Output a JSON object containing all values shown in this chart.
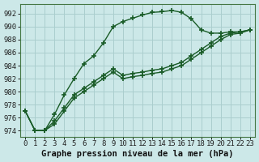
{
  "title": "Graphe pression niveau de la mer (hPa)",
  "bg_color": "#cce8e8",
  "grid_color": "#aacece",
  "line_color": "#1a5c28",
  "xlim": [
    -0.5,
    23.5
  ],
  "ylim": [
    973.0,
    993.5
  ],
  "xticks": [
    0,
    1,
    2,
    3,
    4,
    5,
    6,
    7,
    8,
    9,
    10,
    11,
    12,
    13,
    14,
    15,
    16,
    17,
    18,
    19,
    20,
    21,
    22,
    23
  ],
  "yticks": [
    974,
    976,
    978,
    980,
    982,
    984,
    986,
    988,
    990,
    992
  ],
  "line1": [
    977,
    974,
    974,
    976.5,
    979.5,
    982,
    984.3,
    985.5,
    987.5,
    990.0,
    990.8,
    991.3,
    991.8,
    992.2,
    992.3,
    992.5,
    992.2,
    991.2,
    989.5,
    989.0,
    989.0,
    989.2,
    989.2,
    989.5
  ],
  "line2": [
    977,
    974,
    974,
    975.5,
    977.5,
    979.5,
    980.5,
    981.5,
    982.5,
    983.5,
    982.5,
    982.8,
    983.0,
    983.3,
    983.5,
    984.0,
    984.5,
    985.5,
    986.5,
    987.5,
    988.5,
    989.0,
    989.2,
    989.5
  ],
  "line3": [
    977,
    974,
    974,
    975.0,
    977.0,
    979.0,
    980.0,
    981.0,
    982.0,
    983.0,
    982.0,
    982.3,
    982.5,
    982.8,
    983.0,
    983.5,
    984.0,
    985.0,
    986.0,
    987.0,
    988.0,
    988.8,
    989.0,
    989.5
  ],
  "marker": "+",
  "marker_size": 5,
  "marker_edge_width": 1.2,
  "line_width": 1.0,
  "tick_fontsize": 6.5,
  "title_fontsize": 7.5
}
